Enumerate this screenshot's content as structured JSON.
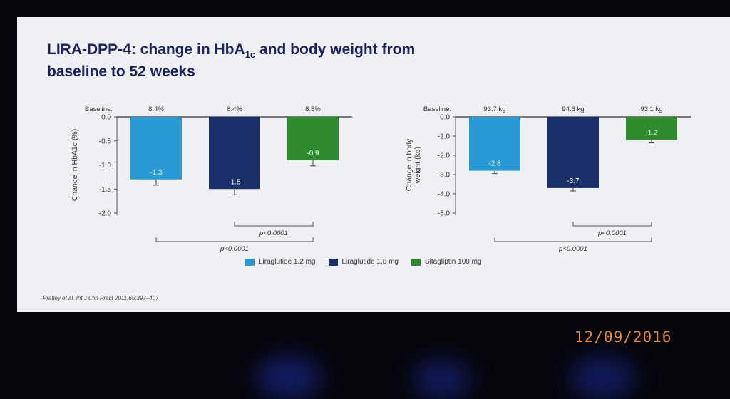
{
  "slide": {
    "title_part1": "LIRA-DPP-4: change in HbA",
    "title_sub": "1c",
    "title_part2": " and body weight from",
    "title_line2": "baseline to 52 weeks",
    "citation": "Pratley et al. Int J Clin Pract 2011;65:397–407"
  },
  "legend": [
    {
      "label": "Liraglutide 1.2 mg",
      "color": "#2a9ad6"
    },
    {
      "label": "Liraglutide 1.8 mg",
      "color": "#1b2f6b"
    },
    {
      "label": "Sitagliptin 100 mg",
      "color": "#2e8b2e"
    }
  ],
  "photo_timestamp": "12/09/2016",
  "chart_data": [
    {
      "type": "bar",
      "ylabel": "Change in HbA1c (%)",
      "ylim": [
        -2.0,
        0.0
      ],
      "yticks": [
        "0.0",
        "-0.5",
        "-1.0",
        "-1.5",
        "-2.0"
      ],
      "baseline_label": "Baseline:",
      "baselines": [
        "8.4%",
        "8.4%",
        "8.5%"
      ],
      "categories": [
        "Liraglutide 1.2 mg",
        "Liraglutide 1.8 mg",
        "Sitagliptin 100 mg"
      ],
      "values": [
        -1.3,
        -1.5,
        -0.9
      ],
      "value_labels": [
        "-1.3",
        "-1.5",
        "-0.9"
      ],
      "error": [
        0.12,
        0.12,
        0.12
      ],
      "colors": [
        "#2a9ad6",
        "#1b2f6b",
        "#2e8b2e"
      ],
      "comparisons": [
        {
          "from": 1,
          "to": 2,
          "label": "p<0.0001"
        },
        {
          "from": 0,
          "to": 2,
          "label": "p<0.0001"
        }
      ]
    },
    {
      "type": "bar",
      "ylabel": "Change in body weight (kg)",
      "ylim": [
        -5.0,
        0.0
      ],
      "yticks": [
        "0.0",
        "-1.0",
        "-2.0",
        "-3.0",
        "-4.0",
        "-5.0"
      ],
      "baseline_label": "Baseline:",
      "baselines": [
        "93.7 kg",
        "94.6 kg",
        "93.1 kg"
      ],
      "categories": [
        "Liraglutide 1.2 mg",
        "Liraglutide 1.8 mg",
        "Sitagliptin 100 mg"
      ],
      "values": [
        -2.8,
        -3.7,
        -1.2
      ],
      "value_labels": [
        "-2.8",
        "-3.7",
        "-1.2"
      ],
      "error": [
        0.15,
        0.15,
        0.15
      ],
      "colors": [
        "#2a9ad6",
        "#1b2f6b",
        "#2e8b2e"
      ],
      "comparisons": [
        {
          "from": 1,
          "to": 2,
          "label": "p<0.0001"
        },
        {
          "from": 0,
          "to": 2,
          "label": "p<0.0001"
        }
      ]
    }
  ]
}
